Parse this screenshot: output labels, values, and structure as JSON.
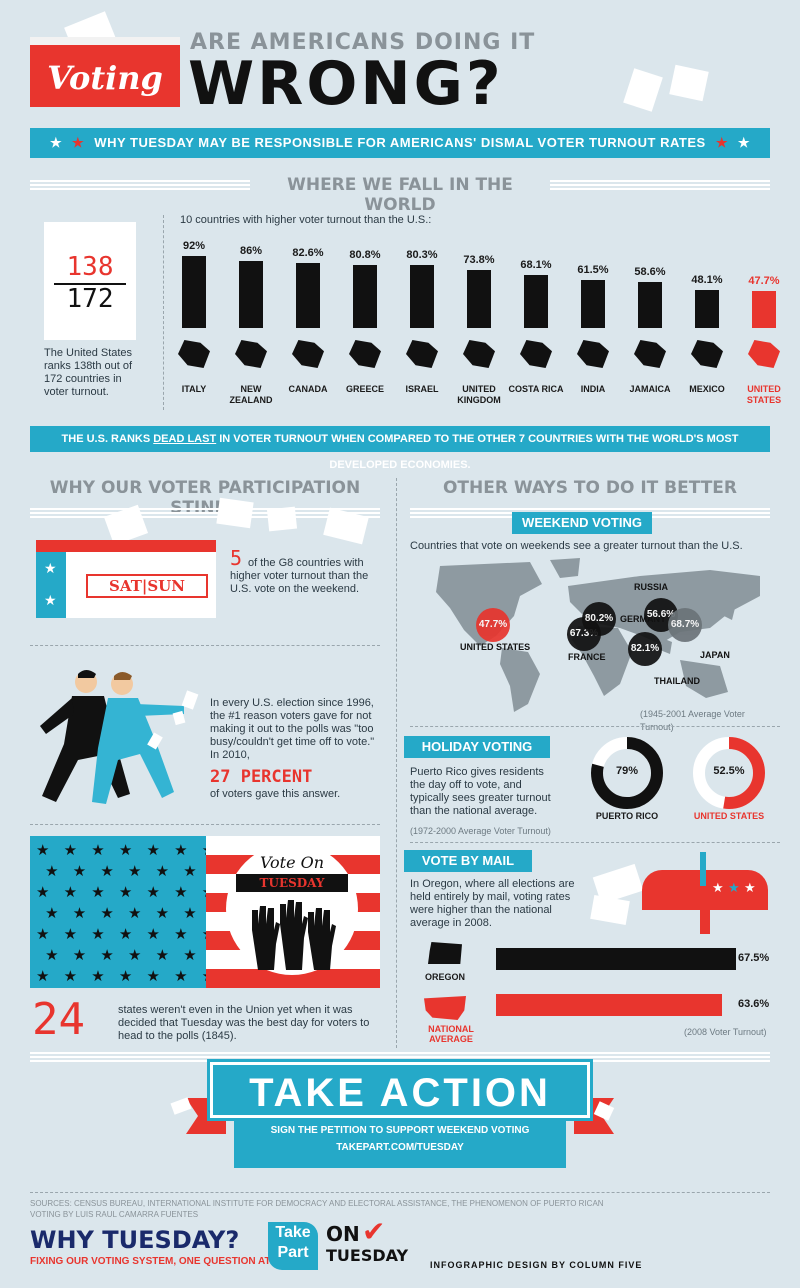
{
  "header": {
    "badge": "Voting",
    "kicker": "ARE AMERICANS DOING IT",
    "headline": "WRONG?",
    "subtitle": "WHY TUESDAY MAY BE RESPONSIBLE FOR AMERICANS' DISMAL VOTER TURNOUT RATES"
  },
  "world": {
    "heading": "WHERE WE FALL IN THE WORLD",
    "rank": "138",
    "total": "172",
    "rank_text": "The United States ranks 138th out of 172 countries in voter turnout.",
    "chart_caption": "10 countries with higher voter turnout than the U.S.:",
    "footer_banner_pre": "THE U.S. RANKS ",
    "footer_banner_em": "DEAD LAST",
    "footer_banner_post": " IN VOTER TURNOUT WHEN COMPARED TO THE OTHER 7 COUNTRIES WITH THE WORLD'S MOST DEVELOPED ECONOMIES."
  },
  "chart_data": {
    "type": "bar",
    "categories": [
      "ITALY",
      "NEW ZEALAND",
      "CANADA",
      "GREECE",
      "ISRAEL",
      "UNITED KINGDOM",
      "COSTA RICA",
      "INDIA",
      "JAMAICA",
      "MEXICO",
      "UNITED STATES"
    ],
    "values": [
      92,
      86,
      82.6,
      80.8,
      80.3,
      73.8,
      68.1,
      61.5,
      58.6,
      48.1,
      47.7
    ],
    "labels": [
      "92%",
      "86%",
      "82.6%",
      "80.8%",
      "80.3%",
      "73.8%",
      "68.1%",
      "61.5%",
      "58.6%",
      "48.1%",
      "47.7%"
    ],
    "highlight": "UNITED STATES",
    "highlight_color": "#e8352e",
    "bar_color": "#111111"
  },
  "why": {
    "heading": "WHY OUR VOTER PARTICIPATION STINKS",
    "box_label": "SAT|SUN",
    "g8_number": "5",
    "g8_text": "of the G8 countries with higher voter turnout than the U.S. vote on the weekend.",
    "busy_text": "In every U.S. election since 1996, the #1 reason voters gave for not making it out to the polls was \"too busy/couldn't get time off to vote.\" In 2010,",
    "busy_pct": "27 PERCENT",
    "busy_tail": "of voters gave this answer.",
    "sign_script": "Vote On",
    "sign_banner": "TUESDAY",
    "states_number": "24",
    "states_text": "states weren't even in the Union yet when it was decided that Tuesday was the best day for voters to head to the polls (1845)."
  },
  "better": {
    "heading": "OTHER WAYS TO DO IT BETTER",
    "weekend": {
      "title": "WEEKEND VOTING",
      "caption": "Countries that vote on weekends see a greater turnout than the U.S.",
      "note": "(1945-2001 Average Voter Turnout)",
      "markers": [
        {
          "label": "UNITED STATES",
          "value": "47.7%"
        },
        {
          "label": "FRANCE",
          "value": "67.3%"
        },
        {
          "label": "GERMANY",
          "value": "80.2%"
        },
        {
          "label": "RUSSIA",
          "value": "56.6%"
        },
        {
          "label": "JAPAN",
          "value": "68.7%"
        },
        {
          "label": "THAILAND",
          "value": "82.1%"
        }
      ]
    },
    "holiday": {
      "title": "HOLIDAY VOTING",
      "text": "Puerto Rico gives residents the day off to vote, and typically sees greater turnout than the national average.",
      "note": "(1972-2000 Average Voter Turnout)",
      "pr_label": "PUERTO RICO",
      "pr_value": "79%",
      "pr_fraction": 0.79,
      "us_label": "UNITED STATES",
      "us_value": "52.5%",
      "us_fraction": 0.525
    },
    "mail": {
      "title": "VOTE BY MAIL",
      "text": "In Oregon, where all elections are held entirely by mail, voting rates were higher than the national average in 2008.",
      "oregon_label": "OREGON",
      "oregon_value": "67.5%",
      "oregon_fraction": 0.675,
      "national_label": "NATIONAL AVERAGE",
      "national_value": "63.6%",
      "national_fraction": 0.636,
      "note": "(2008 Voter Turnout)"
    }
  },
  "action": {
    "title": "TAKE ACTION",
    "line1": "SIGN THE PETITION TO SUPPORT WEEKEND VOTING",
    "line2": "TAKEPART.COM/TUESDAY"
  },
  "footer": {
    "sources": "SOURCES: CENSUS BUREAU, INTERNATIONAL INSTITUTE FOR DEMOCRACY AND ELECTORAL ASSISTANCE, THE PHENOMENON OF PUERTO RICAN VOTING BY LUIS RAUL CAMARRA FUENTES",
    "brand": "WHY TUESDAY?",
    "tagline": "FIXING OUR VOTING SYSTEM, ONE QUESTION AT A TIME",
    "logo_take": "Take",
    "logo_part": "Part",
    "logo_on": "ON",
    "logo_tuesday": "TUESDAY",
    "credit": "INFOGRAPHIC DESIGN BY COLUMN FIVE"
  },
  "colors": {
    "teal": "#25a9c8",
    "red": "#e8352e",
    "background": "#dbe6ec",
    "dark": "#111111"
  }
}
